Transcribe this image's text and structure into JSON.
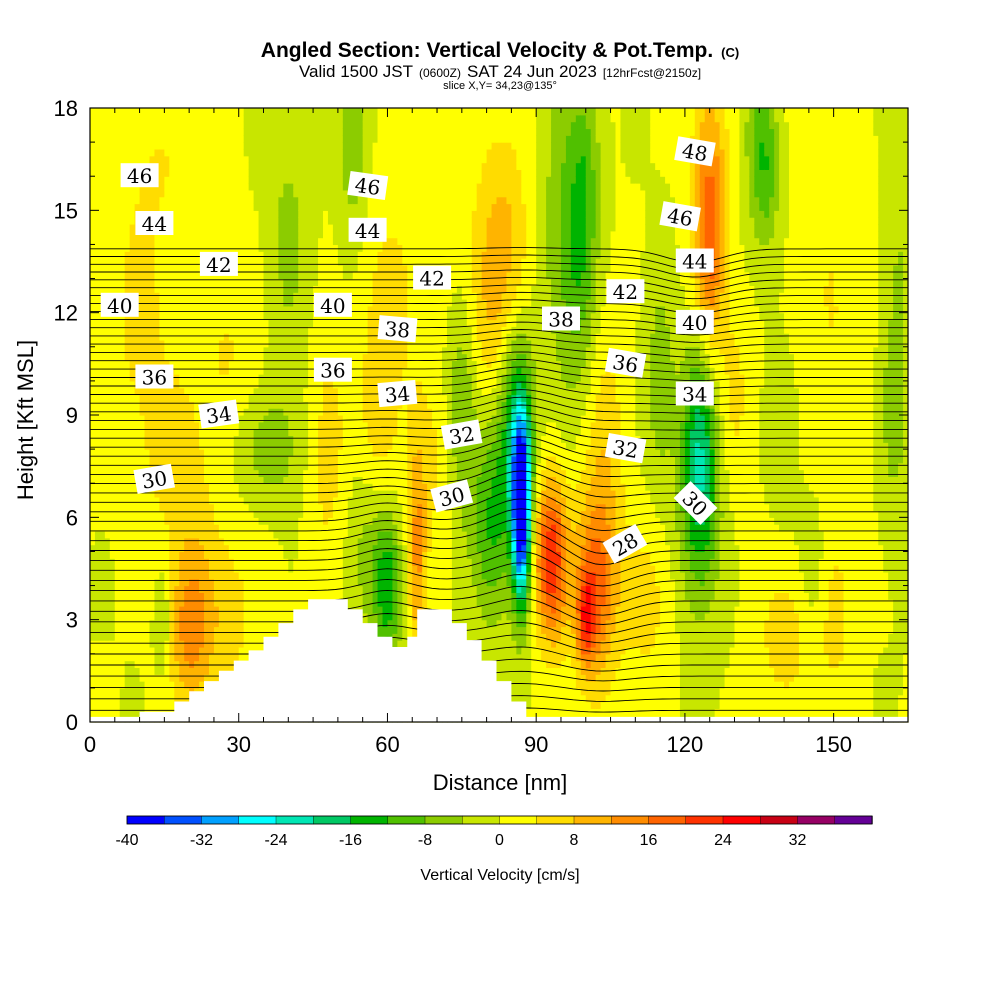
{
  "chart_data": {
    "type": "heatmap",
    "title": "Angled Section: Vertical Velocity & Pot.Temp.",
    "title_mark": "(C)",
    "subtitle": {
      "prefix": "Valid 1500 JST",
      "utc": "(0600Z)",
      "date": "SAT 24 Jun 2023",
      "forecast": "[12hrFcst@2150z]"
    },
    "slice_text": "slice X,Y= 34,23@135°",
    "xlabel": "Distance [nm]",
    "ylabel": "Height [Kft MSL]",
    "xlim": [
      0,
      165
    ],
    "ylim": [
      0,
      18
    ],
    "x_ticks": [
      "0",
      "30",
      "60",
      "90",
      "120",
      "150"
    ],
    "y_ticks": [
      "0",
      "3",
      "6",
      "9",
      "12",
      "15",
      "18"
    ],
    "colorbar": {
      "label": "Vertical Velocity [cm/s]",
      "tick_labels": [
        "-40",
        "-32",
        "-24",
        "-16",
        "-8",
        "0",
        "8",
        "16",
        "24",
        "32"
      ],
      "levels": [
        -40,
        -36,
        -32,
        -28,
        -24,
        -20,
        -16,
        -12,
        -8,
        -4,
        0,
        4,
        8,
        12,
        16,
        20,
        24,
        28,
        32,
        36
      ],
      "colors": [
        "#0000ff",
        "#0050ff",
        "#00a0ff",
        "#00ffff",
        "#00e6b4",
        "#00c864",
        "#00b400",
        "#50c000",
        "#8ccc00",
        "#c8e600",
        "#ffff00",
        "#ffdc00",
        "#ffb400",
        "#ff8c00",
        "#ff6400",
        "#ff3200",
        "#ff0000",
        "#c80014",
        "#960064",
        "#640096"
      ]
    },
    "potential_temperature_labels": [
      {
        "value": "46",
        "x": 10,
        "y": 16.0,
        "angle": 0
      },
      {
        "value": "44",
        "x": 13,
        "y": 14.6,
        "angle": 0
      },
      {
        "value": "42",
        "x": 26,
        "y": 13.4,
        "angle": 0
      },
      {
        "value": "40",
        "x": 6,
        "y": 12.2,
        "angle": 0
      },
      {
        "value": "36",
        "x": 13,
        "y": 10.1,
        "angle": 0
      },
      {
        "value": "34",
        "x": 26,
        "y": 9.0,
        "angle": -8
      },
      {
        "value": "30",
        "x": 13,
        "y": 7.1,
        "angle": -10
      },
      {
        "value": "46",
        "x": 56,
        "y": 15.7,
        "angle": 8
      },
      {
        "value": "44",
        "x": 56,
        "y": 14.4,
        "angle": 0
      },
      {
        "value": "40",
        "x": 49,
        "y": 12.2,
        "angle": 0
      },
      {
        "value": "38",
        "x": 62,
        "y": 11.5,
        "angle": 5
      },
      {
        "value": "36",
        "x": 49,
        "y": 10.3,
        "angle": 0
      },
      {
        "value": "34",
        "x": 62,
        "y": 9.6,
        "angle": -5
      },
      {
        "value": "42",
        "x": 69,
        "y": 13.0,
        "angle": 0
      },
      {
        "value": "32",
        "x": 75,
        "y": 8.4,
        "angle": -10
      },
      {
        "value": "30",
        "x": 73,
        "y": 6.6,
        "angle": -15
      },
      {
        "value": "38",
        "x": 95,
        "y": 11.8,
        "angle": 0
      },
      {
        "value": "42",
        "x": 108,
        "y": 12.6,
        "angle": 0
      },
      {
        "value": "36",
        "x": 108,
        "y": 10.5,
        "angle": 10
      },
      {
        "value": "32",
        "x": 108,
        "y": 8.0,
        "angle": 10
      },
      {
        "value": "28",
        "x": 108,
        "y": 5.2,
        "angle": -30
      },
      {
        "value": "48",
        "x": 122,
        "y": 16.7,
        "angle": 10
      },
      {
        "value": "46",
        "x": 119,
        "y": 14.8,
        "angle": 10
      },
      {
        "value": "44",
        "x": 122,
        "y": 13.5,
        "angle": 0
      },
      {
        "value": "40",
        "x": 122,
        "y": 11.7,
        "angle": 0
      },
      {
        "value": "34",
        "x": 122,
        "y": 9.6,
        "angle": 0
      },
      {
        "value": "30",
        "x": 122,
        "y": 6.4,
        "angle": 45
      }
    ],
    "terrain_profile": {
      "x": [
        0,
        10,
        10,
        17,
        17,
        20,
        20,
        23,
        23,
        26,
        26,
        29,
        29,
        32,
        32,
        35,
        35,
        38,
        38,
        41,
        41,
        44,
        44,
        52,
        52,
        55,
        55,
        58,
        58,
        61,
        61,
        64,
        64,
        66,
        66,
        73,
        73,
        76,
        76,
        79,
        79,
        82,
        82,
        85,
        85,
        88,
        88,
        165
      ],
      "y": [
        0,
        0,
        0.3,
        0.3,
        0.6,
        0.6,
        0.9,
        0.9,
        1.2,
        1.2,
        1.5,
        1.5,
        1.8,
        1.8,
        2.1,
        2.1,
        2.5,
        2.5,
        2.9,
        2.9,
        3.3,
        3.3,
        3.6,
        3.6,
        3.3,
        3.3,
        2.9,
        2.9,
        2.5,
        2.5,
        2.2,
        2.2,
        2.5,
        2.5,
        3.3,
        3.3,
        2.9,
        2.9,
        2.4,
        2.4,
        1.8,
        1.8,
        1.2,
        1.2,
        0.6,
        0.6,
        0,
        0
      ]
    }
  }
}
